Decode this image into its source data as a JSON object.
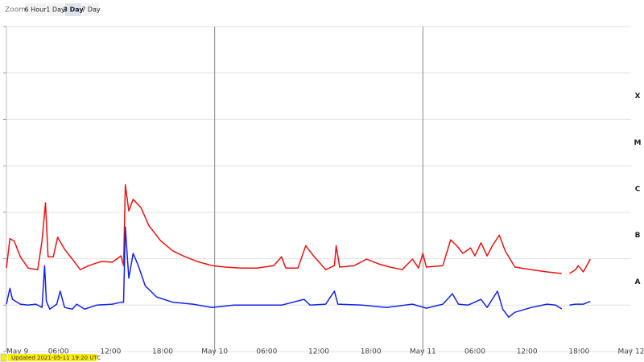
{
  "ui": {
    "zoom_label": "Zoom",
    "zoom_options": [
      "6 Hour",
      "1 Day",
      "3 Day",
      "7 Day"
    ],
    "selected_zoom": 2,
    "updated": "Updated 2021-05-11 19:20 UTC"
  },
  "chart_data": {
    "type": "line",
    "log_y": true,
    "grid": true,
    "xlim": [
      0,
      72
    ],
    "xticks": [
      {
        "value": 0,
        "label": "May 9"
      },
      {
        "value": 6,
        "label": "06:00"
      },
      {
        "value": 12,
        "label": "12:00"
      },
      {
        "value": 18,
        "label": "18:00"
      },
      {
        "value": 24,
        "label": "May 10"
      },
      {
        "value": 30,
        "label": "06:00"
      },
      {
        "value": 36,
        "label": "12:00"
      },
      {
        "value": 42,
        "label": "18:00"
      },
      {
        "value": 48,
        "label": "May 11"
      },
      {
        "value": 54,
        "label": "06:00"
      },
      {
        "value": 60,
        "label": "12:00"
      },
      {
        "value": 66,
        "label": "18:00"
      },
      {
        "value": 72,
        "label": "May 12"
      }
    ],
    "ylim": [
      1e-09,
      0.01
    ],
    "yticks": [
      1e-09,
      1e-08,
      1e-07,
      1e-06,
      1e-05,
      0.0001,
      0.001,
      0.01
    ],
    "class_labels": [
      {
        "label": "A",
        "range": [
          1e-08,
          1e-07
        ]
      },
      {
        "label": "B",
        "range": [
          1e-07,
          1e-06
        ]
      },
      {
        "label": "C",
        "range": [
          1e-06,
          1e-05
        ]
      },
      {
        "label": "M",
        "range": [
          1e-05,
          0.0001
        ]
      },
      {
        "label": "X",
        "range": [
          0.0001,
          0.001
        ]
      }
    ],
    "series": [
      {
        "color": "#ee1111",
        "x": [
          0,
          0.4,
          0.9,
          1.6,
          2.5,
          3.6,
          4.1,
          4.5,
          4.8,
          5.4,
          5.9,
          6.7,
          7.6,
          8.5,
          9.5,
          10.9,
          12.2,
          13.2,
          13.5,
          13.7,
          14.1,
          14.6,
          15.5,
          16.4,
          17.8,
          19.2,
          20.6,
          22,
          23.7,
          25.2,
          27.1,
          28.9,
          30.8,
          31.7,
          32.2,
          33.6,
          34.5,
          35.4,
          36.8,
          37.8,
          38.0,
          38.4,
          40.1,
          41.5,
          42.9,
          44.2,
          45.6,
          46.8,
          47.5,
          48.0,
          48.4,
          50.3,
          51.2,
          51.9,
          52.6,
          53.5,
          54.0,
          54.7,
          55.4,
          56.0,
          56.8,
          57.5,
          58.6,
          60.5,
          62.3,
          64.0,
          64.5,
          64.9,
          65.6,
          65.9,
          66.5,
          67.3
        ],
        "values": [
          6.3e-08,
          2.7e-07,
          2.4e-07,
          1.1e-07,
          6.3e-08,
          5.8e-08,
          2.4e-07,
          1.6e-06,
          1.1e-07,
          1.1e-07,
          2.9e-07,
          1.6e-07,
          9.8e-08,
          5.8e-08,
          7.1e-08,
          8.7e-08,
          8.4e-08,
          1.15e-07,
          7.1e-08,
          3.9e-06,
          1.07e-06,
          1.9e-06,
          1.26e-06,
          5.2e-07,
          2.4e-07,
          1.46e-07,
          1.1e-07,
          8.7e-08,
          7.1e-08,
          6.6e-08,
          6.3e-08,
          6.3e-08,
          7.1e-08,
          1.1e-07,
          6.3e-08,
          6.3e-08,
          1.9e-07,
          1.15e-07,
          5.8e-08,
          7.1e-08,
          1.9e-07,
          6.6e-08,
          7.1e-08,
          9.8e-08,
          7.7e-08,
          6.6e-08,
          5.8e-08,
          9.8e-08,
          6.3e-08,
          1.3e-07,
          6.6e-08,
          7.1e-08,
          2.55e-07,
          1.9e-07,
          1.3e-07,
          1.7e-07,
          1.15e-07,
          2.2e-07,
          1.15e-07,
          1.9e-07,
          3.2e-07,
          1.46e-07,
          6.6e-08,
          5.8e-08,
          5.2e-08,
          4.8e-08,
          null,
          4.8e-08,
          5.8e-08,
          7.1e-08,
          5.2e-08,
          9.8e-08
        ]
      },
      {
        "color": "#1122ee",
        "x": [
          0,
          0.4,
          0.7,
          1.6,
          2.5,
          3.4,
          4.1,
          4.4,
          4.6,
          5.0,
          5.8,
          6.2,
          6.7,
          7.6,
          8.1,
          9.0,
          10.4,
          12.2,
          13.2,
          13.5,
          13.7,
          14.1,
          14.6,
          15.2,
          16.0,
          17.3,
          19.2,
          21.5,
          23.7,
          26.2,
          28.9,
          31.7,
          34.3,
          35.0,
          36.8,
          37.8,
          38.2,
          41.0,
          43.8,
          46.8,
          48.4,
          50.3,
          51.4,
          52.1,
          53.2,
          54.7,
          55.4,
          56.6,
          57.2,
          57.9,
          58.6,
          60.5,
          62.3,
          63.3,
          64.0,
          64.5,
          64.9,
          65.6,
          66.5,
          67.3
        ],
        "values": [
          1.05e-08,
          2.3e-08,
          1.33e-08,
          1.05e-08,
          1e-08,
          1.05e-08,
          8.9e-09,
          7.1e-08,
          1.2e-08,
          8.2e-09,
          1.05e-08,
          2e-08,
          8.9e-09,
          8.2e-09,
          1.05e-08,
          8.2e-09,
          1e-08,
          1.05e-08,
          1.15e-08,
          1.15e-08,
          4.8e-07,
          3.8e-08,
          1.3e-07,
          7.1e-08,
          2.6e-08,
          1.5e-08,
          1.15e-08,
          1.05e-08,
          8.9e-09,
          1e-08,
          1e-08,
          1e-08,
          1.33e-08,
          1e-08,
          1.05e-08,
          2e-08,
          1.05e-08,
          1e-08,
          8.9e-09,
          1.05e-08,
          8.6e-09,
          1.05e-08,
          1.76e-08,
          1.05e-08,
          1e-08,
          1.33e-08,
          8.9e-09,
          2e-08,
          8.2e-09,
          5.5e-09,
          7e-09,
          8.9e-09,
          1.05e-08,
          1e-08,
          8.3e-09,
          null,
          1e-08,
          1.05e-08,
          1.05e-08,
          1.2e-08
        ]
      }
    ]
  }
}
